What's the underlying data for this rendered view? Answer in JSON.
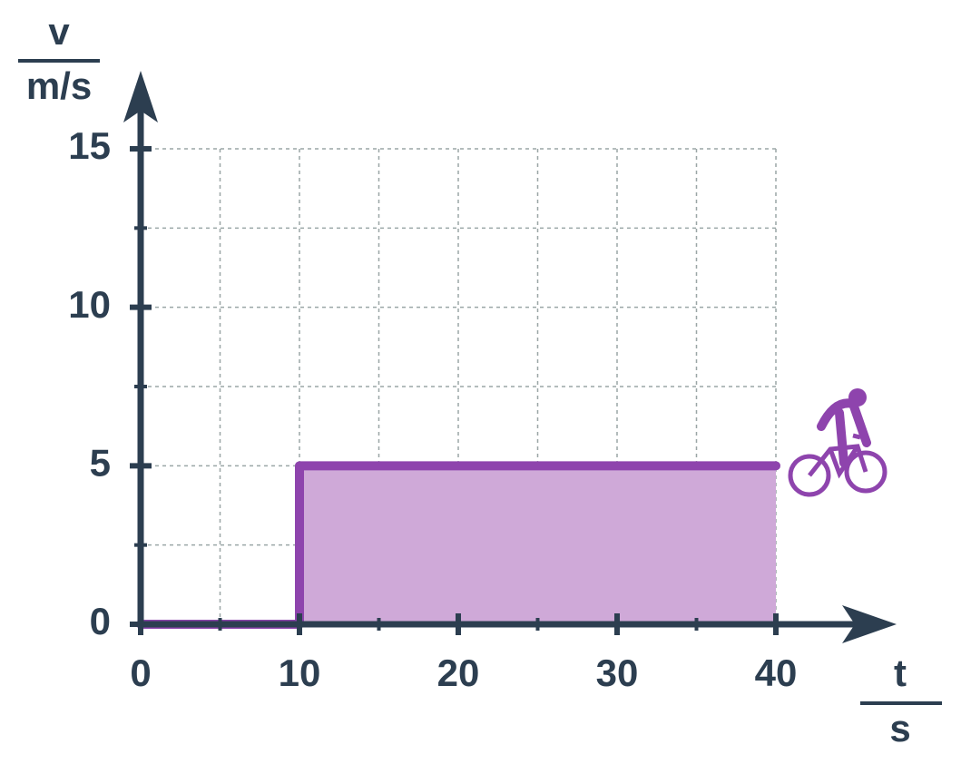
{
  "chart_data": {
    "type": "line",
    "x_label": "t",
    "x_unit": "s",
    "y_label": "v",
    "y_unit": "m/s",
    "x": [
      0,
      10,
      10,
      40
    ],
    "values": [
      0,
      0,
      5,
      5
    ],
    "color": "#8e44ad",
    "fill_color": "#cfa9d8",
    "fill": true,
    "xlim": [
      0,
      40
    ],
    "ylim": [
      0,
      15
    ],
    "xticks": [
      0,
      10,
      20,
      30,
      40
    ],
    "yticks": [
      0,
      5,
      10,
      15
    ],
    "xminorticks": [
      5,
      15,
      25,
      35
    ],
    "yminorticks": [
      2.5,
      7.5,
      12.5
    ],
    "grid": true
  }
}
